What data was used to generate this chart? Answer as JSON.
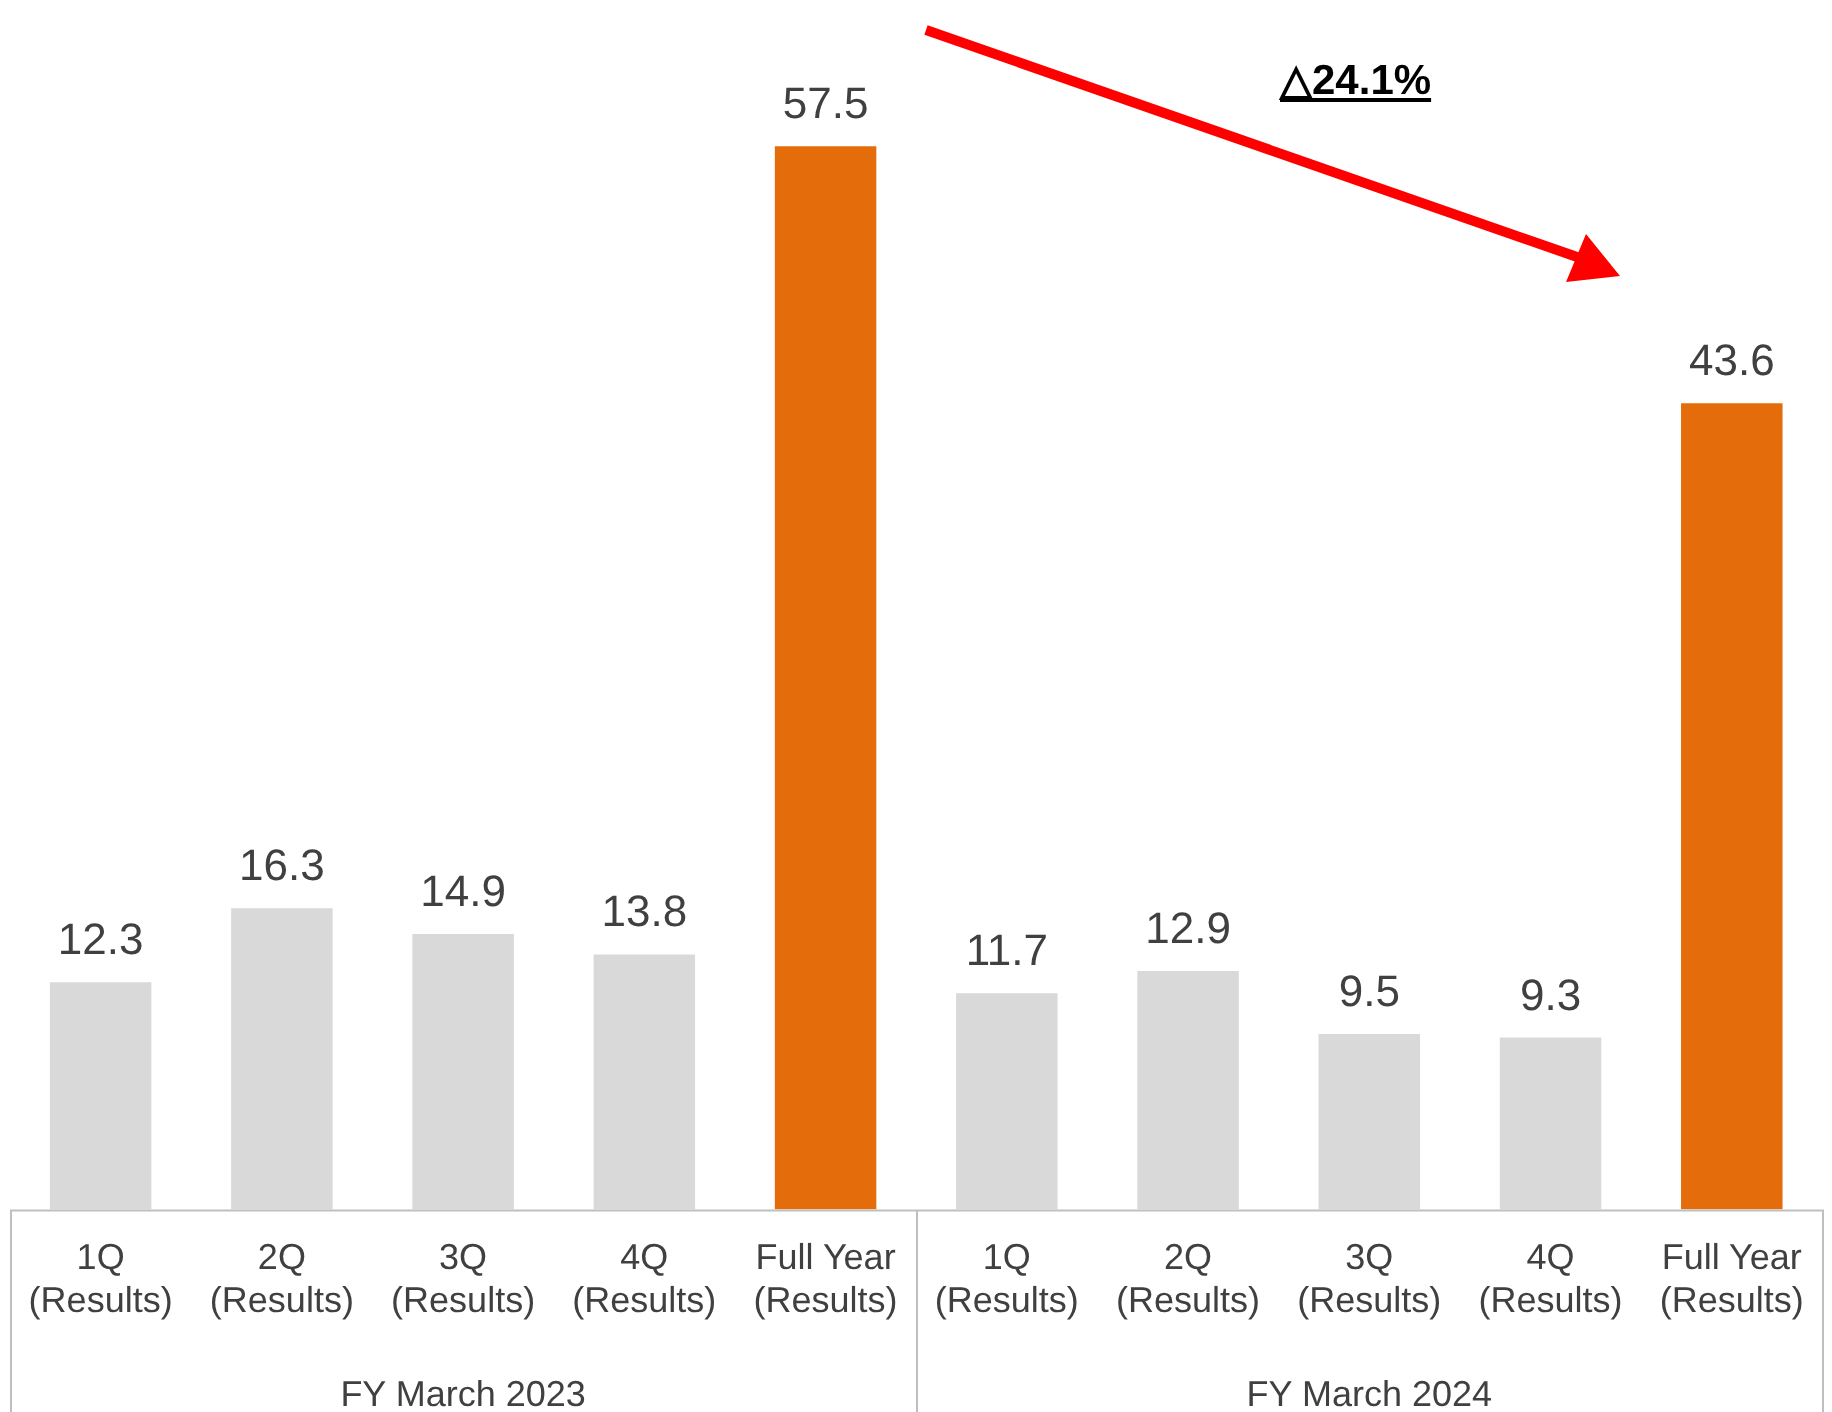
{
  "chart_data": {
    "type": "bar",
    "categories": [
      "1Q (Results)",
      "2Q (Results)",
      "3Q (Results)",
      "4Q (Results)",
      "Full Year (Results)",
      "1Q (Results)",
      "2Q (Results)",
      "3Q (Results)",
      "4Q (Results)",
      "Full Year (Results)"
    ],
    "values": [
      12.3,
      16.3,
      14.9,
      13.8,
      57.5,
      11.7,
      12.9,
      9.5,
      9.3,
      43.6
    ],
    "colors": [
      "#d9d9d9",
      "#d9d9d9",
      "#d9d9d9",
      "#d9d9d9",
      "#e46c0a",
      "#d9d9d9",
      "#d9d9d9",
      "#d9d9d9",
      "#d9d9d9",
      "#e46c0a"
    ],
    "data_labels": true,
    "annotations": [
      "△24.1%",
      "FY March 2023",
      "FY March 2024"
    ]
  }
}
